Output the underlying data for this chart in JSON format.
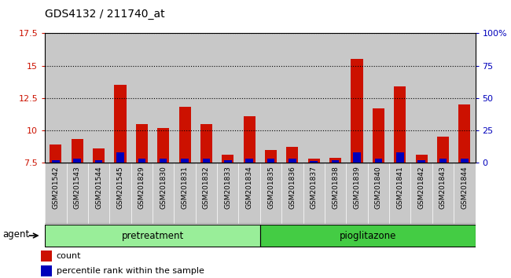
{
  "title": "GDS4132 / 211740_at",
  "samples": [
    "GSM201542",
    "GSM201543",
    "GSM201544",
    "GSM201545",
    "GSM201829",
    "GSM201830",
    "GSM201831",
    "GSM201832",
    "GSM201833",
    "GSM201834",
    "GSM201835",
    "GSM201836",
    "GSM201837",
    "GSM201838",
    "GSM201839",
    "GSM201840",
    "GSM201841",
    "GSM201842",
    "GSM201843",
    "GSM201844"
  ],
  "count_values": [
    8.9,
    9.3,
    8.6,
    13.5,
    10.5,
    10.2,
    11.8,
    10.5,
    8.1,
    11.1,
    8.5,
    8.7,
    7.8,
    7.9,
    15.5,
    11.7,
    13.4,
    8.1,
    9.5,
    12.0
  ],
  "percentile_values": [
    2.0,
    3.0,
    2.0,
    8.0,
    3.0,
    3.0,
    3.0,
    3.0,
    2.0,
    3.0,
    3.0,
    3.0,
    1.0,
    2.0,
    8.0,
    3.0,
    8.0,
    2.0,
    3.0,
    3.0
  ],
  "ylim_left": [
    7.5,
    17.5
  ],
  "ylim_right": [
    0,
    100
  ],
  "yticks_left": [
    7.5,
    10.0,
    12.5,
    15.0,
    17.5
  ],
  "ytick_labels_left": [
    "7.5",
    "10",
    "12.5",
    "15",
    "17.5"
  ],
  "yticks_right": [
    0,
    25,
    50,
    75,
    100
  ],
  "ytick_labels_right": [
    "0",
    "25",
    "50",
    "75",
    "100%"
  ],
  "bar_color_red": "#cc1100",
  "bar_color_blue": "#0000bb",
  "baseline": 7.5,
  "col_bg": "#c8c8c8",
  "plot_bg": "#ffffff",
  "groups": [
    {
      "label": "pretreatment",
      "start": 0,
      "end": 10,
      "color": "#99ee99"
    },
    {
      "label": "pioglitazone",
      "start": 10,
      "end": 20,
      "color": "#44cc44"
    }
  ],
  "legend_items": [
    {
      "label": "count",
      "color": "#cc1100"
    },
    {
      "label": "percentile rank within the sample",
      "color": "#0000bb"
    }
  ]
}
